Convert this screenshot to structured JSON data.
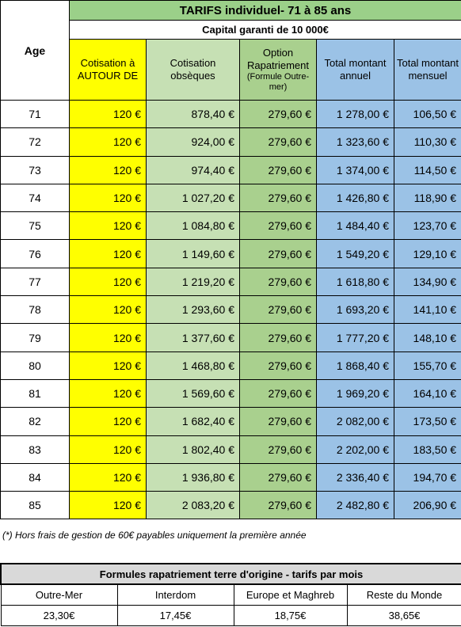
{
  "table": {
    "title": "TARIFS individuel- 71 à 85 ans",
    "subtitle": "Capital garanti de 10 000€",
    "headers": {
      "age": "Age",
      "cotisation_autour": "Cotisation à AUTOUR DE",
      "cotisation_obseques": "Cotisation obsèques",
      "option_rapatriement": "Option Rapatriement",
      "option_rapatriement_sub": "(Formule Outre-mer)",
      "total_annuel": "Total montant annuel",
      "total_mensuel": "Total montant mensuel"
    },
    "rows": [
      {
        "age": "71",
        "autour": "120 €",
        "obseques": "878,40 €",
        "rapatriement": "279,60 €",
        "annuel": "1 278,00 €",
        "mensuel": "106,50 €"
      },
      {
        "age": "72",
        "autour": "120 €",
        "obseques": "924,00 €",
        "rapatriement": "279,60 €",
        "annuel": "1 323,60 €",
        "mensuel": "110,30 €"
      },
      {
        "age": "73",
        "autour": "120 €",
        "obseques": "974,40 €",
        "rapatriement": "279,60 €",
        "annuel": "1 374,00 €",
        "mensuel": "114,50 €"
      },
      {
        "age": "74",
        "autour": "120 €",
        "obseques": "1 027,20 €",
        "rapatriement": "279,60 €",
        "annuel": "1 426,80 €",
        "mensuel": "118,90 €"
      },
      {
        "age": "75",
        "autour": "120 €",
        "obseques": "1 084,80 €",
        "rapatriement": "279,60 €",
        "annuel": "1 484,40 €",
        "mensuel": "123,70 €"
      },
      {
        "age": "76",
        "autour": "120 €",
        "obseques": "1 149,60 €",
        "rapatriement": "279,60 €",
        "annuel": "1 549,20 €",
        "mensuel": "129,10 €"
      },
      {
        "age": "77",
        "autour": "120 €",
        "obseques": "1 219,20 €",
        "rapatriement": "279,60 €",
        "annuel": "1 618,80 €",
        "mensuel": "134,90 €"
      },
      {
        "age": "78",
        "autour": "120 €",
        "obseques": "1 293,60 €",
        "rapatriement": "279,60 €",
        "annuel": "1 693,20 €",
        "mensuel": "141,10 €"
      },
      {
        "age": "79",
        "autour": "120 €",
        "obseques": "1 377,60 €",
        "rapatriement": "279,60 €",
        "annuel": "1 777,20 €",
        "mensuel": "148,10 €"
      },
      {
        "age": "80",
        "autour": "120 €",
        "obseques": "1 468,80 €",
        "rapatriement": "279,60 €",
        "annuel": "1 868,40 €",
        "mensuel": "155,70 €"
      },
      {
        "age": "81",
        "autour": "120 €",
        "obseques": "1 569,60 €",
        "rapatriement": "279,60 €",
        "annuel": "1 969,20 €",
        "mensuel": "164,10 €"
      },
      {
        "age": "82",
        "autour": "120 €",
        "obseques": "1 682,40 €",
        "rapatriement": "279,60 €",
        "annuel": "2 082,00 €",
        "mensuel": "173,50 €"
      },
      {
        "age": "83",
        "autour": "120 €",
        "obseques": "1 802,40 €",
        "rapatriement": "279,60 €",
        "annuel": "2 202,00 €",
        "mensuel": "183,50 €"
      },
      {
        "age": "84",
        "autour": "120 €",
        "obseques": "1 936,80 €",
        "rapatriement": "279,60 €",
        "annuel": "2 336,40 €",
        "mensuel": "194,70 €"
      },
      {
        "age": "85",
        "autour": "120 €",
        "obseques": "2 083,20 €",
        "rapatriement": "279,60 €",
        "annuel": "2 482,80 €",
        "mensuel": "206,90 €"
      }
    ]
  },
  "note": "(*) Hors frais de gestion de 60€ payables uniquement la première année",
  "formules": {
    "title": "Formules rapatriement terre d'origine - tarifs par mois",
    "items": [
      {
        "label": "Outre-Mer",
        "value": "23,30€"
      },
      {
        "label": "Interdom",
        "value": "17,45€"
      },
      {
        "label": "Europe et Maghreb",
        "value": "18,75€"
      },
      {
        "label": "Reste du Monde",
        "value": "38,65€"
      }
    ]
  },
  "colors": {
    "title_green": "#9bd089",
    "yellow": "#ffff00",
    "light_green": "#c6e0b4",
    "green": "#a9d08e",
    "blue": "#9bc2e6",
    "grey": "#d9d9d9"
  }
}
